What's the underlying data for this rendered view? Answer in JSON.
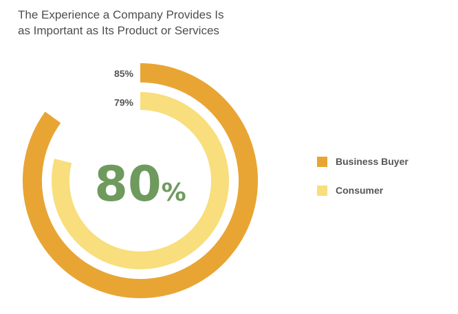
{
  "title": {
    "line1": "The Experience a Company Provides Is",
    "line2": "as Important as Its Product or Services"
  },
  "chart_data": {
    "type": "radial-bar",
    "center_value": "80",
    "center_unit": "%",
    "series": [
      {
        "name": "Business Buyer",
        "value": 85,
        "label": "85%",
        "color": "#e8a534"
      },
      {
        "name": "Consumer",
        "value": 79,
        "label": "79%",
        "color": "#f8de7c"
      }
    ],
    "center_color": "#6f9a5e"
  }
}
